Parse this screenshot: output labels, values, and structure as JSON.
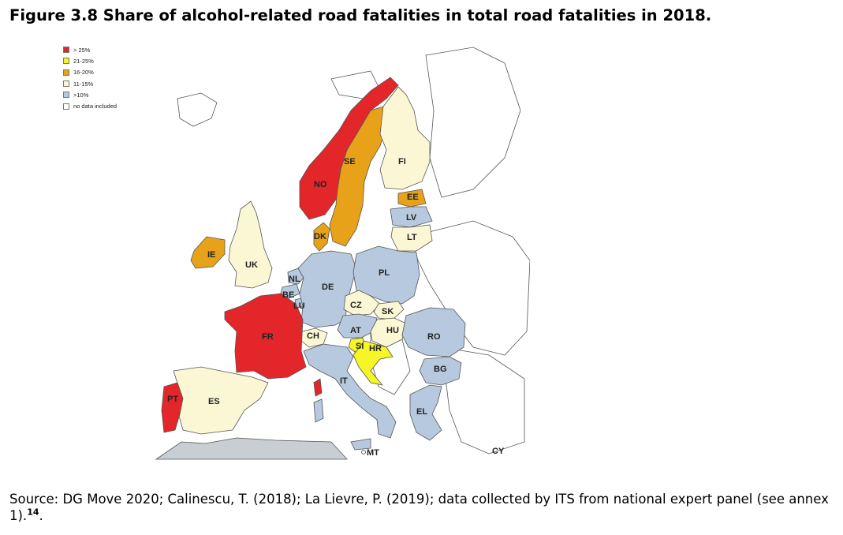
{
  "title": "Figure 3.8 Share of alcohol-related road fatalities in total road fatalities in 2018.",
  "legend": [
    {
      "label": "> 25%",
      "color": "#e3262a"
    },
    {
      "label": "21-25%",
      "color": "#f5f528"
    },
    {
      "label": "16-20%",
      "color": "#e8a21a"
    },
    {
      "label": "11-15%",
      "color": "#fbf7d5"
    },
    {
      "label": ">10%",
      "color": "#b7c9df"
    },
    {
      "label": "no data included",
      "color": "#ffffff"
    }
  ],
  "countries": {
    "NO": "NO",
    "SE": "SE",
    "FI": "FI",
    "EE": "EE",
    "LV": "LV",
    "LT": "LT",
    "DK": "DK",
    "IE": "IE",
    "UK": "UK",
    "NL": "NL",
    "BE": "BE",
    "LU": "LU",
    "DE": "DE",
    "PL": "PL",
    "CZ": "CZ",
    "SK": "SK",
    "AT": "AT",
    "HU": "HU",
    "CH": "CH",
    "FR": "FR",
    "SI": "SI",
    "HR": "HR",
    "RO": "RO",
    "BG": "BG",
    "IT": "IT",
    "ES": "ES",
    "PT": "PT",
    "EL": "EL",
    "MT": "MT",
    "CY": "CY"
  },
  "source": {
    "text": "Source: DG Move 2020; Calinescu, T. (2018); La Lievre, P. (2019); data collected by ITS from national expert panel (see annex 1).",
    "footnote": "14",
    "end": "."
  }
}
